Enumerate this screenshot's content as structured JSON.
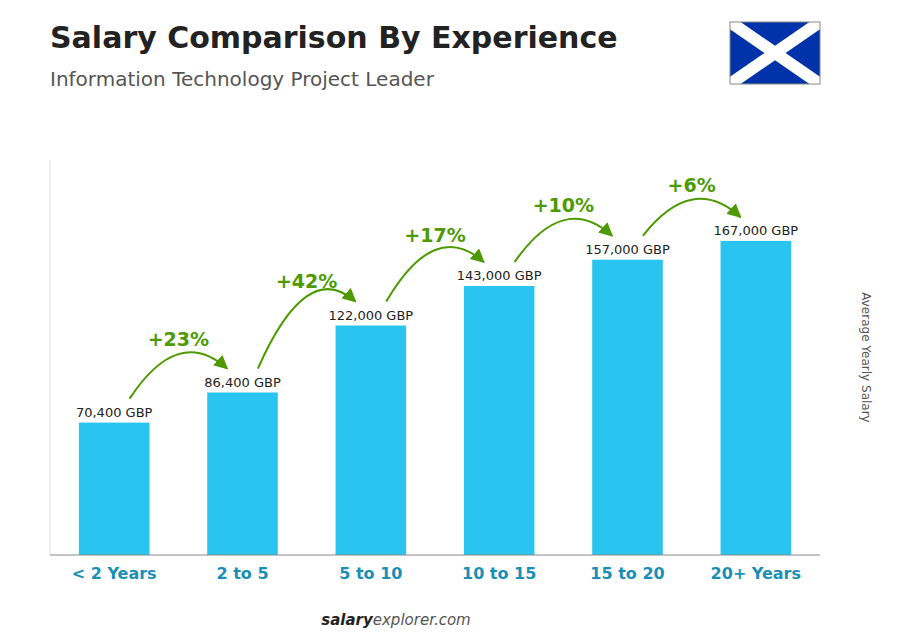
{
  "chart_data": {
    "type": "bar",
    "title": "Salary Comparison By Experience",
    "subtitle": "Information Technology Project Leader",
    "y_label": "Average Yearly Salary",
    "categories": [
      "< 2 Years",
      "2 to 5",
      "5 to 10",
      "10 to 15",
      "15 to 20",
      "20+ Years"
    ],
    "values": [
      70400,
      86400,
      122000,
      143000,
      157000,
      167000
    ],
    "value_labels": [
      "70,400 GBP",
      "86,400 GBP",
      "122,000 GBP",
      "143,000 GBP",
      "157,000 GBP",
      "167,000 GBP"
    ],
    "data_labels": true,
    "annotations": [
      "+23%",
      "+42%",
      "+17%",
      "+10%",
      "+6%"
    ],
    "watermark": [
      "salary",
      "explorer.com"
    ],
    "color": "#29c4f0",
    "ylim": [
      0,
      210000
    ],
    "tick_labels": "x",
    "grid": false
  }
}
